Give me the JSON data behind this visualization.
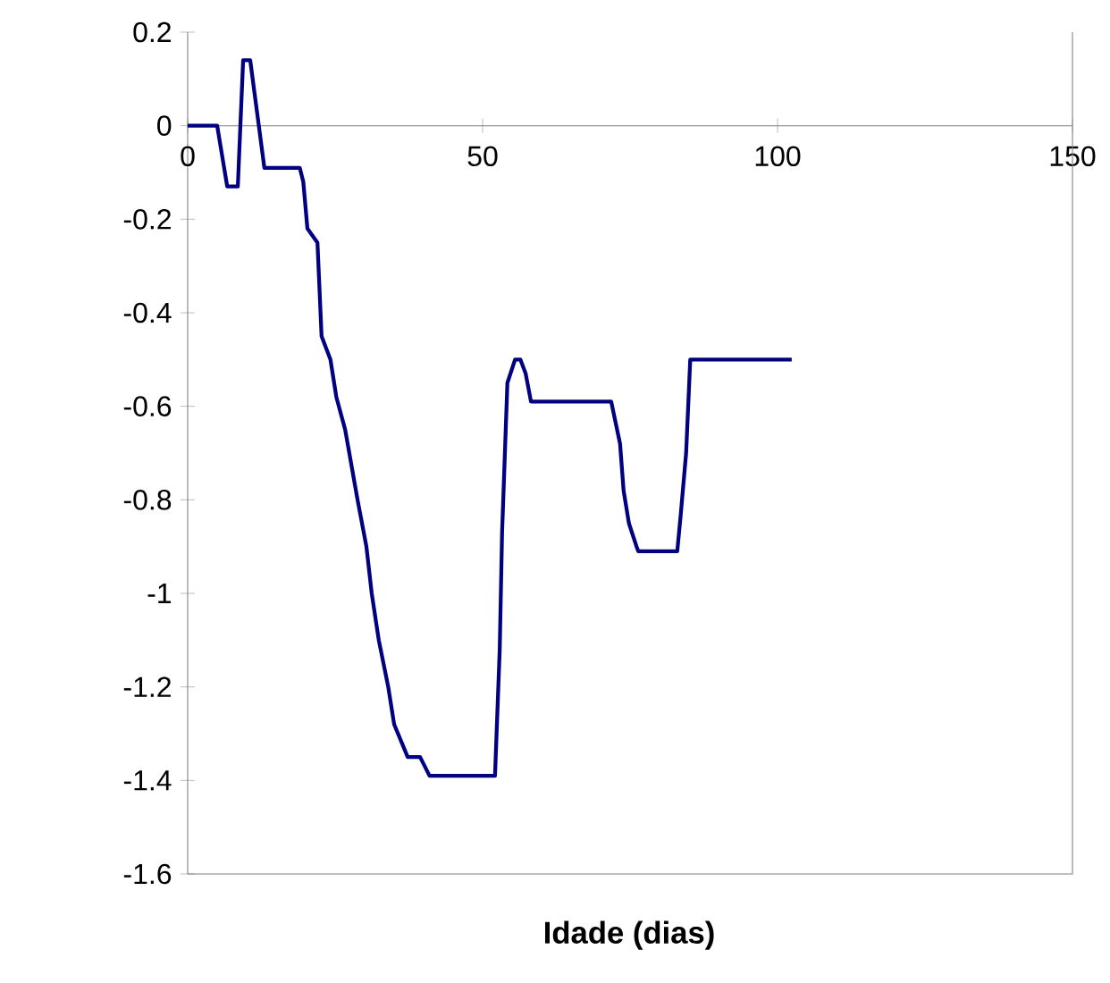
{
  "chart_data": {
    "type": "line",
    "xlabel": "Idade (dias)",
    "x": [
      0,
      5,
      6.7,
      8.5,
      9.4,
      10.6,
      13,
      19,
      19.6,
      20.3,
      22,
      22.7,
      24.2,
      25.2,
      26.7,
      28.8,
      30.3,
      31.2,
      32.4,
      34,
      35,
      37.3,
      39.4,
      41,
      52.1,
      52.9,
      53.3,
      54.2,
      55.5,
      56.4,
      57.3,
      58.2,
      71.8,
      73.3,
      73.9,
      74.8,
      76.1,
      76.4,
      83,
      83.6,
      84.5,
      85.2,
      102.4
    ],
    "series": [
      {
        "color": "#000080",
        "values": [
          0,
          0,
          -0.13,
          -0.13,
          0.14,
          0.14,
          -0.09,
          -0.09,
          -0.12,
          -0.22,
          -0.25,
          -0.45,
          -0.5,
          -0.58,
          -0.65,
          -0.8,
          -0.9,
          -1.0,
          -1.1,
          -1.2,
          -1.28,
          -1.35,
          -1.35,
          -1.39,
          -1.39,
          -1.12,
          -0.87,
          -0.55,
          -0.5,
          -0.5,
          -0.53,
          -0.59,
          -0.59,
          -0.68,
          -0.78,
          -0.85,
          -0.9,
          -0.91,
          -0.91,
          -0.83,
          -0.7,
          -0.5,
          -0.5
        ]
      }
    ],
    "xlim": [
      0,
      150
    ],
    "xticks": [
      0,
      50,
      100,
      150
    ],
    "ylim": [
      -1.6,
      0.2
    ],
    "yticks": [
      0.2,
      0,
      -0.2,
      -0.4,
      -0.6,
      -0.8,
      -1,
      -1.2,
      -1.4,
      -1.6
    ],
    "marker": "none",
    "line_style": "solid"
  }
}
